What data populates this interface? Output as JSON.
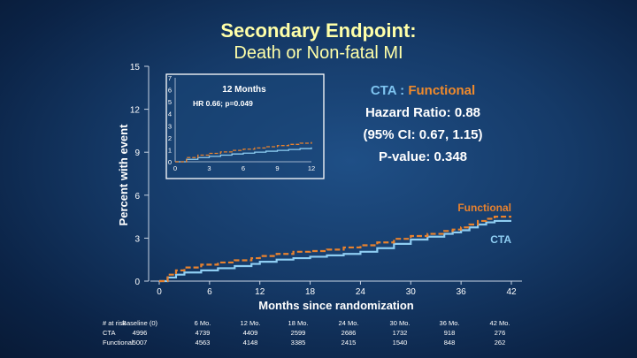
{
  "title": {
    "line1": "Secondary Endpoint:",
    "line2": "Death or Non-fatal MI"
  },
  "stats": {
    "label_cta": "CTA",
    "separator": ":",
    "label_functional": "Functional",
    "hazard_ratio": "Hazard Ratio: 0.88",
    "ci": "(95% CI: 0.67, 1.15)",
    "p_value": "P-value: 0.348"
  },
  "colors": {
    "cta": "#8ecdf2",
    "functional": "#e8822e",
    "title": "#ffffa8",
    "axis": "#c8d4e4"
  },
  "chart_data": [
    {
      "type": "line",
      "title": "",
      "xlabel": "Months since randomization",
      "ylabel": "Percent with event",
      "xlim": [
        0,
        42
      ],
      "ylim": [
        0,
        15
      ],
      "xticks": [
        0,
        6,
        12,
        18,
        24,
        30,
        36,
        42
      ],
      "yticks": [
        0,
        3,
        6,
        9,
        12,
        15
      ],
      "series": [
        {
          "name": "CTA",
          "style": "solid",
          "x": [
            0,
            1,
            2,
            3,
            5,
            7,
            9,
            11,
            12,
            14,
            16,
            18,
            20,
            22,
            24,
            26,
            28,
            30,
            32,
            34,
            35,
            36,
            37,
            38,
            39,
            40,
            42
          ],
          "y": [
            0,
            0.25,
            0.45,
            0.6,
            0.75,
            0.9,
            1.05,
            1.2,
            1.35,
            1.5,
            1.6,
            1.7,
            1.8,
            1.9,
            2.05,
            2.3,
            2.6,
            2.9,
            3.1,
            3.3,
            3.4,
            3.55,
            3.75,
            3.95,
            4.1,
            4.2,
            4.2
          ]
        },
        {
          "name": "Functional",
          "style": "dashed",
          "x": [
            0,
            1,
            2,
            3,
            5,
            7,
            9,
            11,
            12,
            14,
            16,
            18,
            20,
            22,
            24,
            26,
            28,
            30,
            32,
            34,
            35,
            36,
            37,
            38,
            39,
            40,
            42
          ],
          "y": [
            0,
            0.45,
            0.75,
            0.95,
            1.15,
            1.3,
            1.45,
            1.6,
            1.75,
            1.9,
            2.05,
            2.1,
            2.2,
            2.35,
            2.5,
            2.7,
            2.95,
            3.15,
            3.3,
            3.5,
            3.6,
            3.75,
            3.95,
            4.2,
            4.35,
            4.5,
            4.5
          ]
        }
      ],
      "legend": [
        {
          "label": "Functional",
          "series": "Functional"
        },
        {
          "label": "CTA",
          "series": "CTA"
        }
      ]
    },
    {
      "type": "line",
      "title": "12 Months",
      "annotation": "HR 0.66; p=0.049",
      "xlim": [
        0,
        12
      ],
      "ylim": [
        0,
        7
      ],
      "xticks": [
        0,
        3,
        6,
        9,
        12
      ],
      "yticks": [
        0,
        1,
        2,
        3,
        4,
        5,
        6,
        7
      ],
      "series": [
        {
          "name": "CTA",
          "style": "solid",
          "x": [
            0,
            1,
            2,
            3,
            4,
            5,
            6,
            7,
            8,
            9,
            10,
            11,
            12
          ],
          "y": [
            0,
            0.2,
            0.35,
            0.45,
            0.55,
            0.65,
            0.72,
            0.8,
            0.88,
            0.95,
            1.02,
            1.1,
            1.2
          ]
        },
        {
          "name": "Functional",
          "style": "dashed",
          "x": [
            0,
            1,
            2,
            3,
            4,
            5,
            6,
            7,
            8,
            9,
            10,
            11,
            12
          ],
          "y": [
            0,
            0.35,
            0.55,
            0.7,
            0.82,
            0.95,
            1.05,
            1.15,
            1.25,
            1.35,
            1.45,
            1.55,
            1.65
          ]
        }
      ]
    }
  ],
  "risk_table": {
    "header": [
      "# at risk",
      "Baseline (0)",
      "6 Mo.",
      "12 Mo.",
      "18 Mo.",
      "24 Mo.",
      "30 Mo.",
      "36 Mo.",
      "42 Mo."
    ],
    "rows": [
      {
        "label": "CTA",
        "values": [
          "4996",
          "4739",
          "4409",
          "2599",
          "2686",
          "1732",
          "918",
          "276"
        ]
      },
      {
        "label": "Functional",
        "values": [
          "5007",
          "4563",
          "4148",
          "3385",
          "2415",
          "1540",
          "848",
          "262"
        ]
      }
    ]
  }
}
